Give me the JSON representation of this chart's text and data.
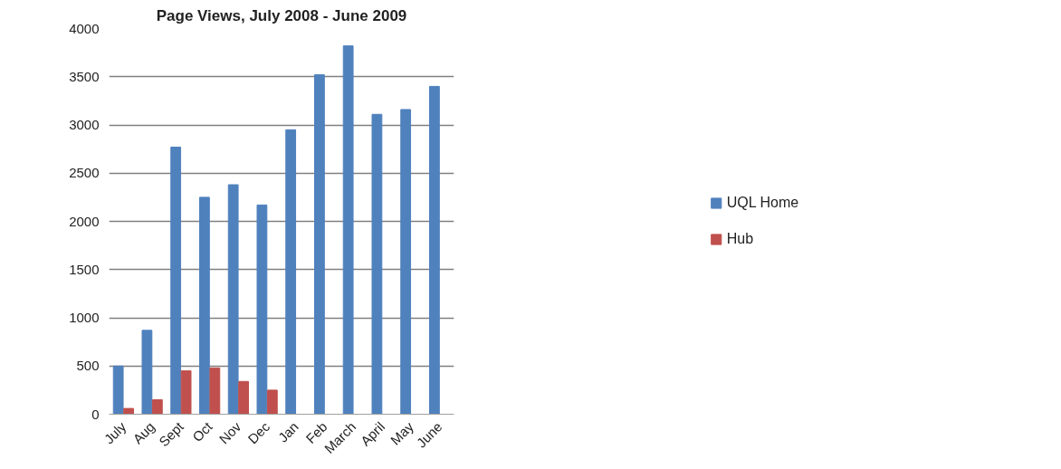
{
  "chart_data": {
    "type": "bar",
    "title": "Page Views, July 2008 - June 2009",
    "categories": [
      "July",
      "Aug",
      "Sept",
      "Oct",
      "Nov",
      "Dec",
      "Jan",
      "Feb",
      "March",
      "April",
      "May",
      "June"
    ],
    "series": [
      {
        "name": "UQL Home",
        "color": "#4f81bd",
        "values": [
          500,
          870,
          2770,
          2250,
          2380,
          2170,
          2950,
          3520,
          3820,
          3110,
          3160,
          3400
        ]
      },
      {
        "name": "Hub",
        "color": "#c0504d",
        "values": [
          60,
          150,
          450,
          480,
          340,
          250,
          null,
          null,
          null,
          null,
          null,
          null
        ]
      }
    ],
    "ylim": [
      0,
      4000
    ],
    "yticks": [
      0,
      500,
      1000,
      1500,
      2000,
      2500,
      3000,
      3500,
      4000
    ],
    "grid": "y",
    "legend": "right"
  }
}
